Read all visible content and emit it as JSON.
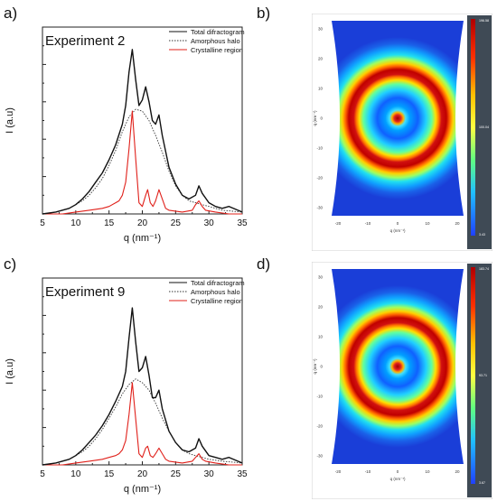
{
  "panels": {
    "a": "a)",
    "b": "b)",
    "c": "c)",
    "d": "d)"
  },
  "chart_data": [
    {
      "type": "line",
      "panel": "a)",
      "title": "Experiment 2",
      "xlabel": "q (nm⁻¹)",
      "ylabel": "I (a.u)",
      "xlim": [
        5,
        35
      ],
      "ylim": [
        0,
        1.0
      ],
      "xticks": [
        5,
        10,
        15,
        20,
        25,
        30,
        35
      ],
      "legend_position": "top-right",
      "series": [
        {
          "name": "Total difractogram",
          "color": "#111111",
          "style": "solid",
          "x": [
            5,
            7,
            9,
            10,
            11,
            12,
            13,
            14,
            15,
            16,
            17,
            17.5,
            18,
            18.5,
            19,
            19.5,
            20,
            20.5,
            21,
            21.5,
            22,
            22.5,
            23,
            24,
            25,
            26,
            27,
            28,
            28.5,
            29,
            30,
            31,
            32,
            33,
            35
          ],
          "y": [
            0.0,
            0.01,
            0.03,
            0.05,
            0.08,
            0.12,
            0.17,
            0.22,
            0.29,
            0.37,
            0.48,
            0.58,
            0.76,
            0.88,
            0.72,
            0.58,
            0.61,
            0.68,
            0.6,
            0.5,
            0.48,
            0.53,
            0.42,
            0.25,
            0.16,
            0.1,
            0.08,
            0.1,
            0.15,
            0.11,
            0.06,
            0.04,
            0.03,
            0.04,
            0.01
          ]
        },
        {
          "name": "Amorphous halo",
          "color": "#333333",
          "style": "dotted",
          "x": [
            5,
            7,
            9,
            10,
            11,
            12,
            13,
            14,
            15,
            16,
            17,
            18,
            19,
            20,
            21,
            22,
            23,
            24,
            25,
            26,
            27,
            28,
            29,
            30,
            32,
            35
          ],
          "y": [
            0.0,
            0.01,
            0.03,
            0.05,
            0.07,
            0.1,
            0.14,
            0.19,
            0.26,
            0.34,
            0.44,
            0.52,
            0.56,
            0.55,
            0.5,
            0.42,
            0.33,
            0.23,
            0.15,
            0.1,
            0.07,
            0.06,
            0.05,
            0.04,
            0.02,
            0.01
          ]
        },
        {
          "name": "Crystalline region",
          "color": "#e0201a",
          "style": "solid",
          "x": [
            5,
            8,
            10,
            12,
            14,
            15,
            16,
            16.5,
            17,
            17.5,
            18,
            18.5,
            19,
            19.5,
            20,
            20.5,
            20.8,
            21.2,
            21.6,
            22,
            22.5,
            23,
            23.5,
            24,
            26,
            27.5,
            28,
            28.5,
            29,
            29.5,
            31,
            33,
            35
          ],
          "y": [
            0.0,
            0.0,
            0.01,
            0.02,
            0.03,
            0.04,
            0.06,
            0.07,
            0.1,
            0.17,
            0.35,
            0.55,
            0.3,
            0.06,
            0.04,
            0.1,
            0.13,
            0.06,
            0.04,
            0.07,
            0.13,
            0.08,
            0.03,
            0.02,
            0.01,
            0.02,
            0.05,
            0.07,
            0.04,
            0.02,
            0.01,
            0.0,
            0.0
          ]
        }
      ]
    },
    {
      "type": "line",
      "panel": "c)",
      "title": "Experiment 9",
      "xlabel": "q (nm⁻¹)",
      "ylabel": "I (a.u)",
      "xlim": [
        5,
        35
      ],
      "ylim": [
        0,
        1.0
      ],
      "xticks": [
        5,
        10,
        15,
        20,
        25,
        30,
        35
      ],
      "legend_position": "top-right",
      "series": [
        {
          "name": "Total difractogram",
          "color": "#111111",
          "style": "solid",
          "x": [
            5,
            7,
            9,
            10,
            11,
            12,
            13,
            14,
            15,
            16,
            17,
            17.5,
            18,
            18.5,
            19,
            19.5,
            20,
            20.5,
            21,
            21.5,
            22,
            22.5,
            23,
            24,
            25,
            26,
            27,
            28,
            28.5,
            29,
            30,
            31,
            32,
            33,
            35
          ],
          "y": [
            0.0,
            0.01,
            0.03,
            0.05,
            0.08,
            0.12,
            0.16,
            0.21,
            0.27,
            0.34,
            0.42,
            0.5,
            0.68,
            0.84,
            0.66,
            0.5,
            0.52,
            0.58,
            0.48,
            0.36,
            0.36,
            0.4,
            0.3,
            0.18,
            0.12,
            0.08,
            0.07,
            0.09,
            0.14,
            0.1,
            0.05,
            0.04,
            0.03,
            0.04,
            0.01
          ]
        },
        {
          "name": "Amorphous halo",
          "color": "#333333",
          "style": "dotted",
          "x": [
            5,
            7,
            9,
            10,
            11,
            12,
            13,
            14,
            15,
            16,
            17,
            18,
            19,
            20,
            21,
            22,
            23,
            24,
            25,
            26,
            27,
            28,
            29,
            30,
            32,
            35
          ],
          "y": [
            0.0,
            0.01,
            0.03,
            0.05,
            0.07,
            0.1,
            0.14,
            0.19,
            0.25,
            0.31,
            0.38,
            0.43,
            0.46,
            0.44,
            0.4,
            0.33,
            0.25,
            0.18,
            0.12,
            0.08,
            0.06,
            0.05,
            0.04,
            0.03,
            0.02,
            0.01
          ]
        },
        {
          "name": "Crystalline region",
          "color": "#e0201a",
          "style": "solid",
          "x": [
            5,
            8,
            10,
            12,
            14,
            15,
            16,
            16.5,
            17,
            17.5,
            18,
            18.5,
            19,
            19.5,
            20,
            20.5,
            20.8,
            21.2,
            21.6,
            22,
            22.5,
            23,
            23.5,
            24,
            26,
            27.5,
            28,
            28.5,
            29,
            29.5,
            31,
            33,
            35
          ],
          "y": [
            0.0,
            0.0,
            0.01,
            0.02,
            0.03,
            0.04,
            0.05,
            0.06,
            0.08,
            0.13,
            0.27,
            0.44,
            0.25,
            0.06,
            0.04,
            0.09,
            0.1,
            0.05,
            0.04,
            0.06,
            0.09,
            0.06,
            0.03,
            0.02,
            0.01,
            0.02,
            0.04,
            0.06,
            0.03,
            0.02,
            0.01,
            0.0,
            0.0
          ]
        }
      ]
    },
    {
      "type": "heatmap",
      "panel": "b)",
      "xlabel": "q (nm⁻¹)",
      "ylabel": "q (nm⁻¹)",
      "xticks": [
        -20,
        -10,
        0,
        10,
        20
      ],
      "yticks": [
        30,
        20,
        10,
        0,
        -10,
        -20,
        -30
      ],
      "colorbar": {
        "max_label": "196.58",
        "mid_label": "100.04",
        "min_label": "3.43"
      },
      "rings_q": [
        2,
        13.5,
        20.5
      ]
    },
    {
      "type": "heatmap",
      "panel": "d)",
      "xlabel": "q (nm⁻¹)",
      "ylabel": "q (nm⁻¹)",
      "xticks": [
        -20,
        -10,
        0,
        10,
        20
      ],
      "yticks": [
        30,
        20,
        10,
        0,
        -10,
        -20,
        -30
      ],
      "colorbar": {
        "max_label": "183.74",
        "mid_label": "93.71",
        "min_label": "3.67"
      },
      "rings_q": [
        2,
        13.5,
        20.5
      ]
    }
  ]
}
